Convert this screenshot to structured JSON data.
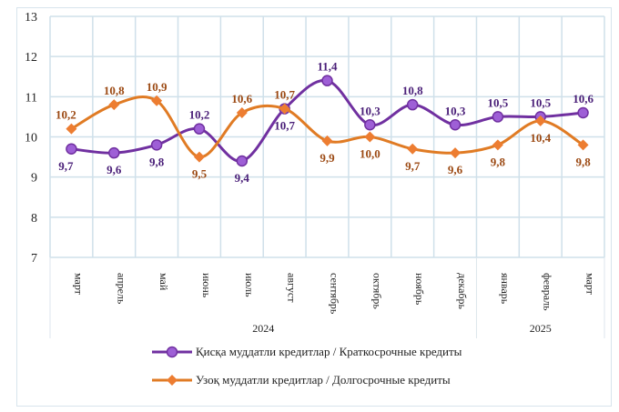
{
  "chart_data": {
    "type": "line",
    "categories": [
      "март",
      "апрель",
      "май",
      "июнь",
      "июль",
      "август",
      "сентябрь",
      "октябрь",
      "ноябрь",
      "декабрь",
      "январь",
      "февраль",
      "март"
    ],
    "year_groups": [
      {
        "label": "2024",
        "count": 10
      },
      {
        "label": "2025",
        "count": 3
      }
    ],
    "ylim": [
      7,
      13
    ],
    "yticks": [
      7,
      8,
      9,
      10,
      11,
      12,
      13
    ],
    "grid": true,
    "legend_position": "bottom",
    "series": [
      {
        "name": "Қисқа муддатли кредитлар  / Краткосрочные кредиты",
        "color": "#7030a0",
        "marker_color": "#9e5fd6",
        "label_color": "#4a1f78",
        "marker": "circle",
        "values": [
          9.7,
          9.6,
          9.8,
          10.2,
          9.4,
          10.7,
          11.4,
          10.3,
          10.8,
          10.3,
          10.5,
          10.5,
          10.6
        ],
        "labels": [
          "9,7",
          "9,6",
          "9,8",
          "10,2",
          "9,4",
          "10,7",
          "11,4",
          "10,3",
          "10,8",
          "10,3",
          "10,5",
          "10,5",
          "10,6"
        ]
      },
      {
        "name": "Узоқ муддатли  кредитлар  / Долгосрочные кредиты",
        "color": "#e07b24",
        "marker_color": "#ed7d31",
        "label_color": "#9c4a14",
        "marker": "diamond",
        "values": [
          10.2,
          10.8,
          10.9,
          9.5,
          10.6,
          10.7,
          9.9,
          10.0,
          9.7,
          9.6,
          9.8,
          10.4,
          9.8
        ],
        "labels": [
          "10,2",
          "10,8",
          "10,9",
          "9,5",
          "10,6",
          "10,7",
          "9,9",
          "10,0",
          "9,7",
          "9,6",
          "9,8",
          "10,4",
          "9,8"
        ]
      }
    ]
  }
}
